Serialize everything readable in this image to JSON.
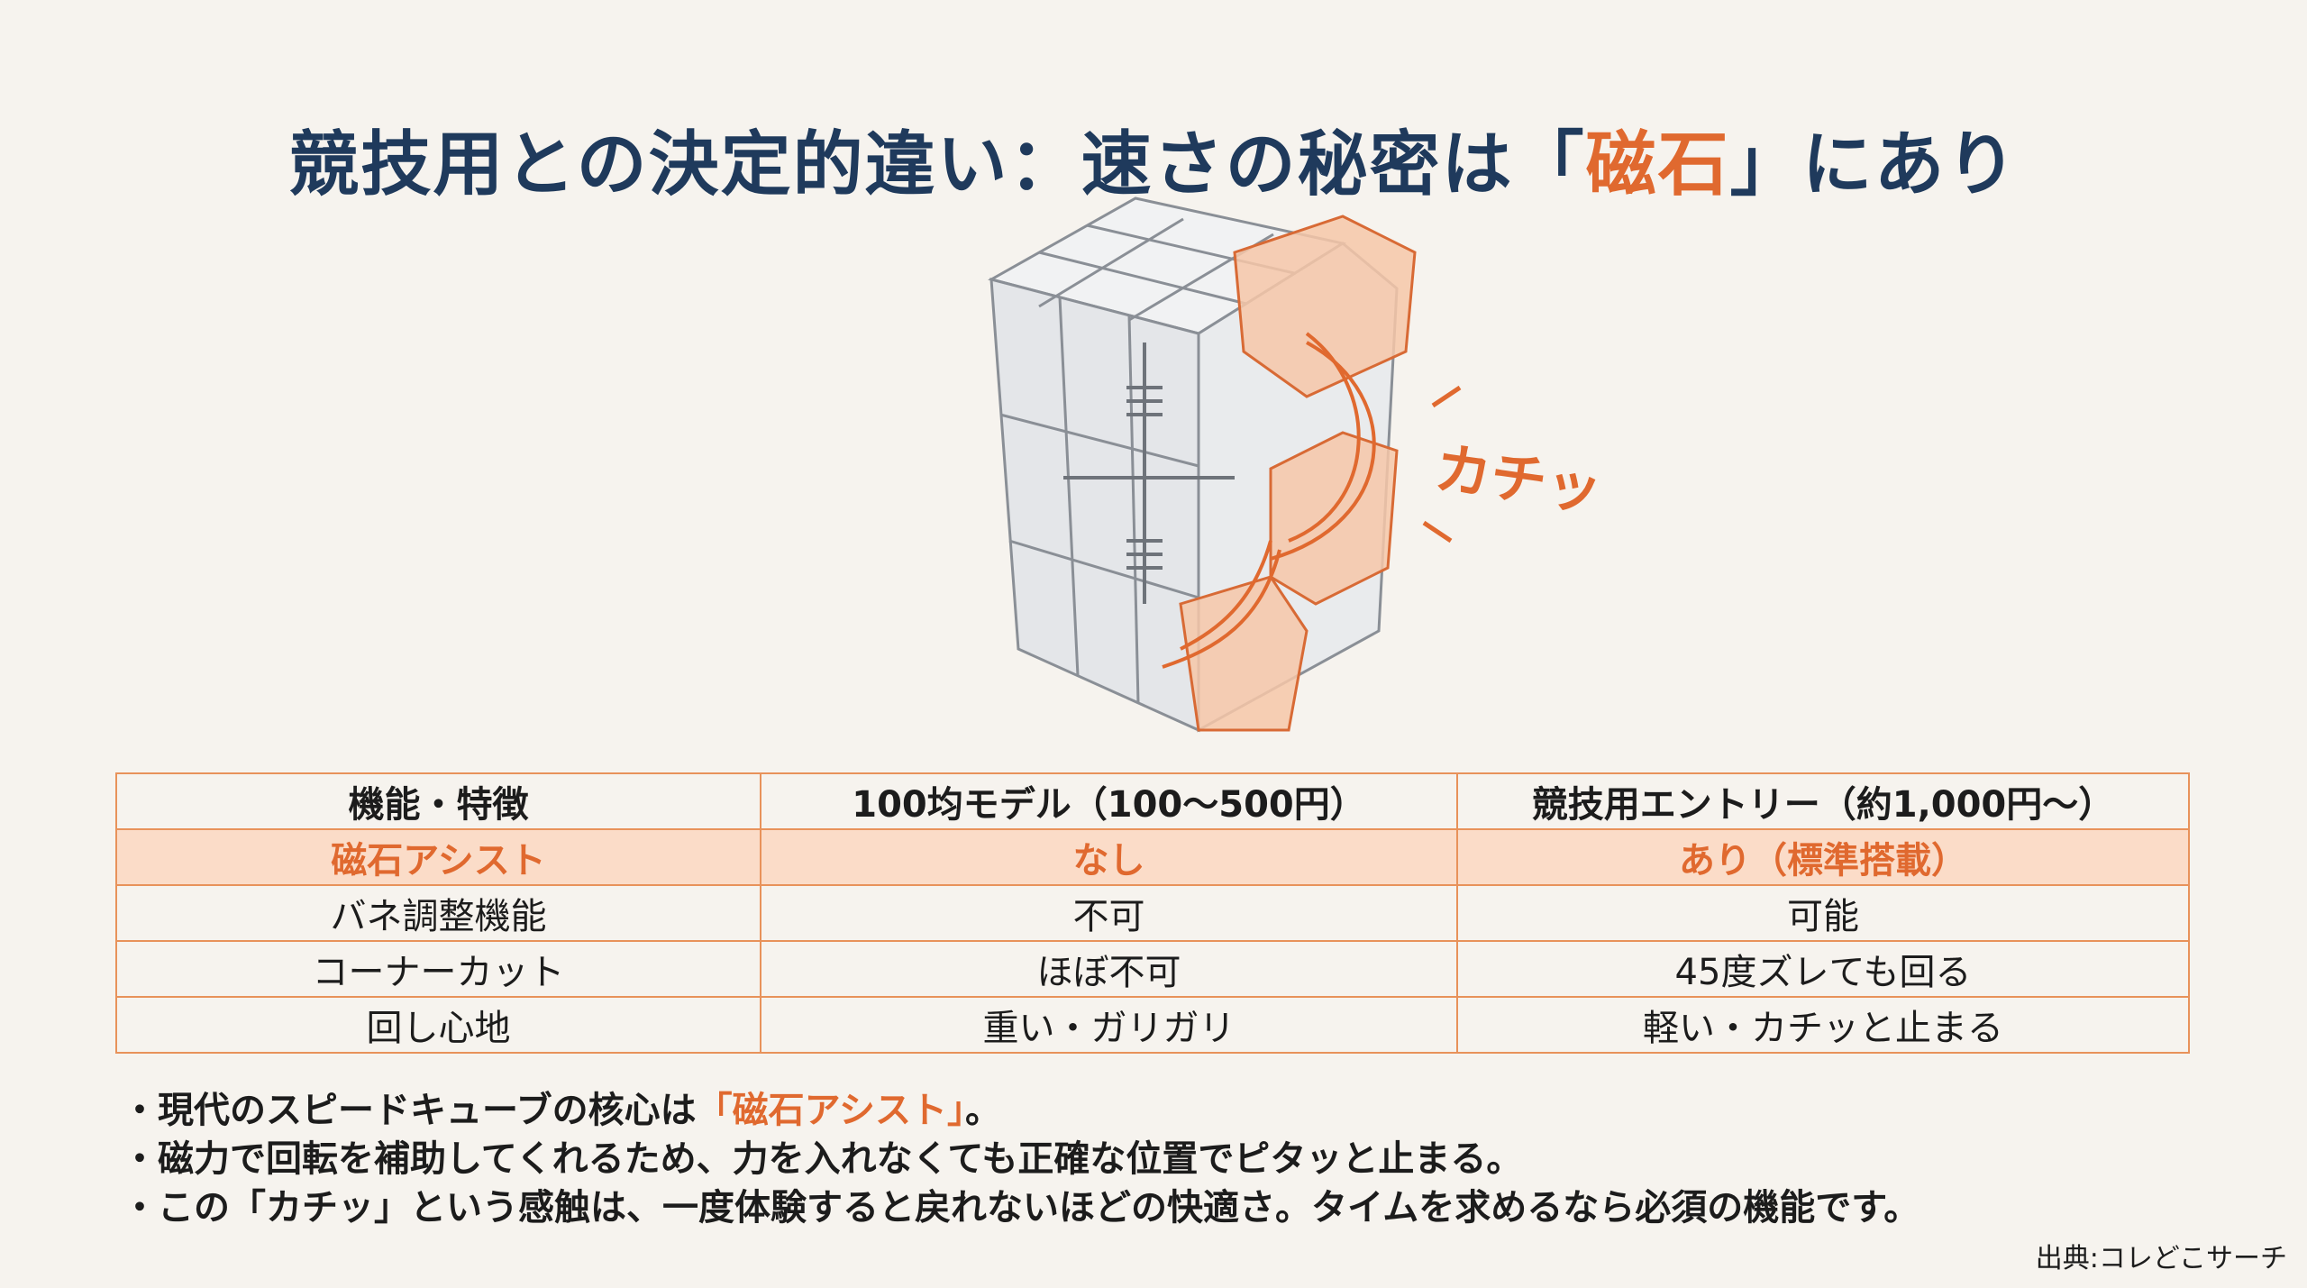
{
  "title": {
    "before": "競技用との決定的違い：速さの秘密は「",
    "highlight": "磁石",
    "after": "」にあり"
  },
  "illustration": {
    "sound_label": "カチッ"
  },
  "table": {
    "headers": [
      "機能・特徴",
      "100均モデル（100〜500円）",
      "競技用エントリー（約1,000円〜）"
    ],
    "rows": [
      [
        "磁石アシスト",
        "なし",
        "あり（標準搭載）"
      ],
      [
        "バネ調整機能",
        "不可",
        "可能"
      ],
      [
        "コーナーカット",
        "ほぼ不可",
        "45度ズレても回る"
      ],
      [
        "回し心地",
        "重い・ガリガリ",
        "軽い・カチッと止まる"
      ]
    ]
  },
  "bullets": [
    {
      "before": "・現代のスピードキューブの核心は",
      "highlight": "「磁石アシスト」",
      "after": "。"
    },
    {
      "before": "・磁力で回転を補助してくれるため、力を入れなくても正確な位置でピタッと止まる。"
    },
    {
      "before": "・この「カチッ」という感触は、一度体験すると戻れないほどの快適さ。タイムを求めるなら必須の機能です。"
    }
  ],
  "source": "出典:コレどこサーチ",
  "colors": {
    "accent": "#e0692f",
    "title": "#1f3a5c",
    "background": "#f6f3ee",
    "highlight_row": "#fbdcc8"
  }
}
